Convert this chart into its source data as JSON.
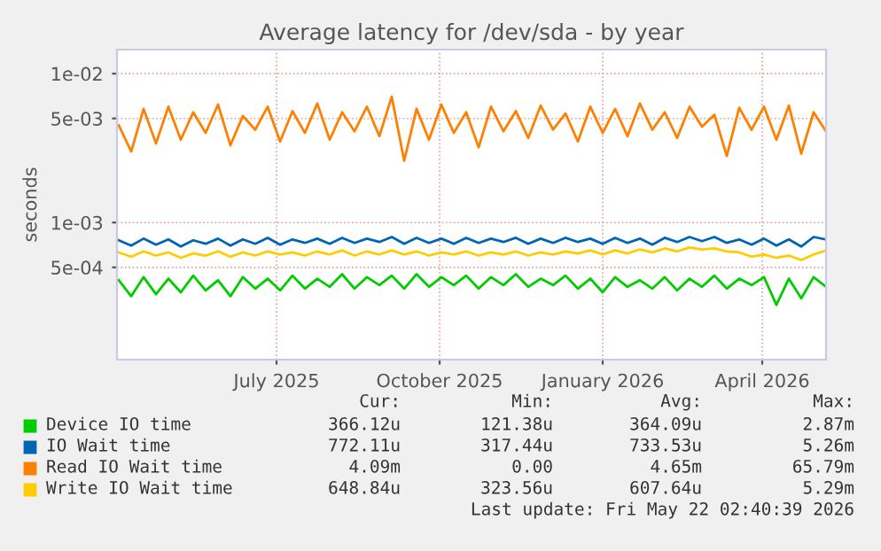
{
  "chart_data": {
    "type": "line",
    "title": "Average latency for /dev/sda - by year",
    "ylabel": "seconds",
    "log": "y",
    "xlim": [
      "2025-04-17",
      "2026-05-22"
    ],
    "xticks": [
      {
        "value": "2025-07-16",
        "label": "July 2025"
      },
      {
        "value": "2025-10-16",
        "label": "October 2025"
      },
      {
        "value": "2026-01-16",
        "label": "January 2026"
      },
      {
        "value": "2026-04-16",
        "label": "April 2026"
      }
    ],
    "ylim": [
      0.00012,
      0.0145
    ],
    "yticks": [
      {
        "value": 0.0005,
        "label": "5e-04"
      },
      {
        "value": 0.001,
        "label": "1e-03"
      },
      {
        "value": 0.005,
        "label": "5e-03"
      },
      {
        "value": 0.01,
        "label": "1e-02"
      }
    ],
    "grid": true,
    "legend": "bottom",
    "x": [
      "2025-04-18",
      "2025-04-25",
      "2025-05-02",
      "2025-05-09",
      "2025-05-16",
      "2025-05-23",
      "2025-05-30",
      "2025-06-06",
      "2025-06-13",
      "2025-06-20",
      "2025-06-27",
      "2025-07-04",
      "2025-07-11",
      "2025-07-18",
      "2025-07-25",
      "2025-08-01",
      "2025-08-08",
      "2025-08-15",
      "2025-08-22",
      "2025-08-29",
      "2025-09-05",
      "2025-09-12",
      "2025-09-19",
      "2025-09-26",
      "2025-10-03",
      "2025-10-10",
      "2025-10-17",
      "2025-10-24",
      "2025-10-31",
      "2025-11-07",
      "2025-11-14",
      "2025-11-21",
      "2025-11-28",
      "2025-12-05",
      "2025-12-12",
      "2025-12-19",
      "2025-12-26",
      "2026-01-02",
      "2026-01-09",
      "2026-01-16",
      "2026-01-23",
      "2026-01-30",
      "2026-02-06",
      "2026-02-13",
      "2026-02-20",
      "2026-02-27",
      "2026-03-06",
      "2026-03-13",
      "2026-03-20",
      "2026-03-27",
      "2026-04-03",
      "2026-04-10",
      "2026-04-17",
      "2026-04-24",
      "2026-05-01",
      "2026-05-08",
      "2026-05-15",
      "2026-05-22"
    ],
    "series": [
      {
        "name": "Device IO time",
        "color": "#00cc00",
        "values": [
          0.00041,
          0.00032,
          0.00043,
          0.00033,
          0.00042,
          0.00034,
          0.00044,
          0.00035,
          0.00041,
          0.00032,
          0.00043,
          0.00036,
          0.00042,
          0.00035,
          0.00044,
          0.00036,
          0.00042,
          0.00037,
          0.00045,
          0.00036,
          0.00043,
          0.00038,
          0.00044,
          0.00036,
          0.00045,
          0.00037,
          0.00043,
          0.00038,
          0.00044,
          0.00036,
          0.00043,
          0.00038,
          0.00045,
          0.00037,
          0.00042,
          0.00038,
          0.00044,
          0.00036,
          0.00042,
          0.00034,
          0.00043,
          0.00037,
          0.00041,
          0.00036,
          0.00043,
          0.00035,
          0.00042,
          0.00037,
          0.00044,
          0.00036,
          0.00042,
          0.00038,
          0.00043,
          0.00028,
          0.00042,
          0.00031,
          0.00043,
          0.00037
        ]
      },
      {
        "name": "IO Wait time",
        "color": "#0066b3",
        "values": [
          0.00076,
          0.0007,
          0.00078,
          0.00071,
          0.00077,
          0.00069,
          0.00076,
          0.00072,
          0.00078,
          0.0007,
          0.00077,
          0.00072,
          0.00079,
          0.00071,
          0.00077,
          0.00073,
          0.00078,
          0.00072,
          0.00079,
          0.00073,
          0.00078,
          0.00074,
          0.0008,
          0.00072,
          0.00079,
          0.00073,
          0.00078,
          0.00072,
          0.00079,
          0.00073,
          0.00078,
          0.00074,
          0.00079,
          0.00072,
          0.00078,
          0.00073,
          0.00079,
          0.00074,
          0.00078,
          0.00072,
          0.00079,
          0.00073,
          0.00078,
          0.00071,
          0.00079,
          0.00074,
          0.0008,
          0.00075,
          0.0008,
          0.00073,
          0.00077,
          0.00071,
          0.00078,
          0.0007,
          0.00077,
          0.00069,
          0.0008,
          0.00077
        ]
      },
      {
        "name": "Read IO Wait time",
        "color": "#ff8000",
        "values": [
          0.0045,
          0.003,
          0.0058,
          0.0034,
          0.006,
          0.0036,
          0.0055,
          0.004,
          0.0062,
          0.0033,
          0.0052,
          0.0042,
          0.006,
          0.0035,
          0.0056,
          0.004,
          0.0063,
          0.0036,
          0.0055,
          0.0041,
          0.006,
          0.0038,
          0.007,
          0.0026,
          0.0058,
          0.0036,
          0.0062,
          0.004,
          0.0055,
          0.0032,
          0.006,
          0.0041,
          0.0056,
          0.0037,
          0.0061,
          0.0042,
          0.0054,
          0.0035,
          0.006,
          0.004,
          0.0058,
          0.0038,
          0.0063,
          0.0042,
          0.0055,
          0.0037,
          0.006,
          0.0044,
          0.0053,
          0.0028,
          0.0059,
          0.0042,
          0.006,
          0.0036,
          0.0061,
          0.0029,
          0.0055,
          0.0041
        ]
      },
      {
        "name": "Write IO Wait time",
        "color": "#ffcc00",
        "values": [
          0.00063,
          0.00059,
          0.00064,
          0.0006,
          0.00063,
          0.00058,
          0.00062,
          0.0006,
          0.00064,
          0.00059,
          0.00063,
          0.0006,
          0.00064,
          0.00061,
          0.00063,
          0.0006,
          0.00064,
          0.00061,
          0.00065,
          0.0006,
          0.00064,
          0.00061,
          0.00065,
          0.00061,
          0.00064,
          0.0006,
          0.00063,
          0.00061,
          0.00064,
          0.0006,
          0.00063,
          0.00061,
          0.00064,
          0.0006,
          0.00063,
          0.00061,
          0.00064,
          0.00062,
          0.00065,
          0.00061,
          0.00065,
          0.00062,
          0.00066,
          0.00063,
          0.00067,
          0.00064,
          0.00068,
          0.00066,
          0.00067,
          0.00064,
          0.00063,
          0.00059,
          0.00061,
          0.00058,
          0.0006,
          0.00056,
          0.00061,
          0.00065
        ]
      }
    ],
    "annotations": [
      "Cur:",
      "Min:",
      "Avg:",
      "Max:",
      "366.12u",
      "121.38u",
      "364.09u",
      "2.87m",
      "772.11u",
      "317.44u",
      "733.53u",
      "5.26m",
      "4.09m",
      "0.00",
      "4.65m",
      "65.79m",
      "648.84u",
      "323.56u",
      "607.64u",
      "5.29m",
      "Last update: Fri May 22 02:40:39 2026"
    ]
  }
}
